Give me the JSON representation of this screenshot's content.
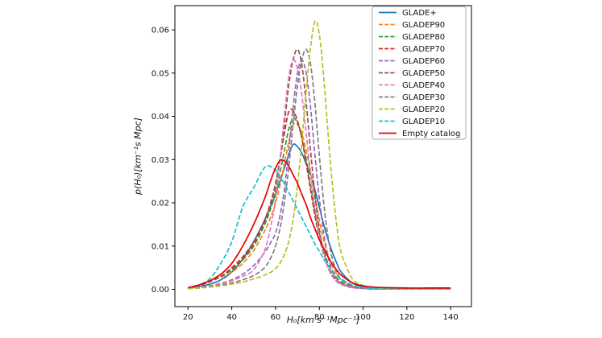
{
  "figure": {
    "background": "#ffffff",
    "text_color": "#111111",
    "spine_color": "#000000",
    "legend_border_color": "#aaaaaa"
  },
  "chart_data": {
    "type": "line",
    "title": "",
    "xlabel": "H₀[km s⁻¹Mpc⁻¹]",
    "ylabel": "p(H₀)[km⁻¹s Mpc]",
    "xlim": [
      14,
      149.5
    ],
    "ylim": [
      -0.004,
      0.0656
    ],
    "grid": false,
    "legend_position": "upper right",
    "xticks": [
      20,
      40,
      60,
      80,
      100,
      120,
      140
    ],
    "xtick_labels": [
      "20",
      "40",
      "60",
      "80",
      "100",
      "120",
      "140"
    ],
    "yticks": [
      0.0,
      0.01,
      0.02,
      0.03,
      0.04,
      0.05,
      0.06
    ],
    "ytick_labels": [
      "0.00",
      "0.01",
      "0.02",
      "0.03",
      "0.04",
      "0.05",
      "0.06"
    ],
    "x": [
      20,
      25,
      30,
      35,
      40,
      45,
      50,
      55,
      58,
      60,
      62,
      64,
      66,
      68,
      70,
      72,
      74,
      76,
      78,
      80,
      82,
      84,
      86,
      88,
      90,
      95,
      100,
      105,
      110,
      120,
      130,
      140
    ],
    "series": [
      {
        "name": "GLADE+",
        "color": "#1f77b4",
        "style": "solid",
        "values": [
          0.0003,
          0.0006,
          0.0012,
          0.0022,
          0.004,
          0.007,
          0.011,
          0.016,
          0.0195,
          0.022,
          0.025,
          0.028,
          0.031,
          0.0335,
          0.033,
          0.0315,
          0.029,
          0.0265,
          0.023,
          0.019,
          0.015,
          0.0115,
          0.0085,
          0.006,
          0.004,
          0.0015,
          0.0006,
          0.0003,
          0.0002,
          0.0001,
          0.0001,
          0.0001
        ]
      },
      {
        "name": "GLADEP90",
        "color": "#ff7f0e",
        "style": "dashed",
        "values": [
          0.0003,
          0.0008,
          0.0018,
          0.0028,
          0.004,
          0.006,
          0.009,
          0.0135,
          0.017,
          0.02,
          0.024,
          0.029,
          0.034,
          0.038,
          0.0382,
          0.036,
          0.032,
          0.027,
          0.0215,
          0.016,
          0.0115,
          0.008,
          0.0053,
          0.0035,
          0.0022,
          0.0008,
          0.0003,
          0.0002,
          0.0001,
          0.0001,
          0.0001,
          0.0001
        ]
      },
      {
        "name": "GLADEP80",
        "color": "#2ca02c",
        "style": "dashed",
        "values": [
          0.0003,
          0.0008,
          0.0018,
          0.003,
          0.0045,
          0.0068,
          0.01,
          0.015,
          0.019,
          0.0225,
          0.027,
          0.032,
          0.037,
          0.0395,
          0.0385,
          0.035,
          0.03,
          0.024,
          0.018,
          0.013,
          0.009,
          0.006,
          0.004,
          0.0026,
          0.0017,
          0.0006,
          0.0003,
          0.0002,
          0.0001,
          0.0001,
          0.0001,
          0.0001
        ]
      },
      {
        "name": "GLADEP70",
        "color": "#d62728",
        "style": "dashed",
        "values": [
          0.0003,
          0.0008,
          0.0018,
          0.003,
          0.005,
          0.0075,
          0.011,
          0.016,
          0.0205,
          0.0245,
          0.03,
          0.036,
          0.041,
          0.0413,
          0.039,
          0.035,
          0.029,
          0.023,
          0.017,
          0.012,
          0.008,
          0.0052,
          0.0033,
          0.0021,
          0.0013,
          0.0005,
          0.0002,
          0.0001,
          0.0001,
          0.0001,
          0.0001,
          0.0001
        ]
      },
      {
        "name": "GLADEP60",
        "color": "#9467bd",
        "style": "dashed",
        "values": [
          0.0002,
          0.0004,
          0.0008,
          0.0014,
          0.0022,
          0.0035,
          0.0055,
          0.0085,
          0.011,
          0.013,
          0.017,
          0.023,
          0.032,
          0.042,
          0.05,
          0.053,
          0.05,
          0.042,
          0.031,
          0.021,
          0.013,
          0.0075,
          0.0042,
          0.0024,
          0.0014,
          0.0005,
          0.0002,
          0.0001,
          0.0001,
          0.0001,
          0.0001,
          0.0001
        ]
      },
      {
        "name": "GLADEP50",
        "color": "#8c564b",
        "style": "dashed",
        "values": [
          0.0003,
          0.0008,
          0.0018,
          0.003,
          0.0048,
          0.007,
          0.0105,
          0.0155,
          0.02,
          0.024,
          0.03,
          0.038,
          0.047,
          0.053,
          0.0555,
          0.052,
          0.043,
          0.032,
          0.022,
          0.014,
          0.0085,
          0.005,
          0.003,
          0.0018,
          0.0011,
          0.0004,
          0.0002,
          0.0001,
          0.0001,
          0.0001,
          0.0001,
          0.0001
        ]
      },
      {
        "name": "GLADEP40",
        "color": "#e377c2",
        "style": "dashed",
        "values": [
          0.0002,
          0.0004,
          0.0008,
          0.0013,
          0.002,
          0.003,
          0.0045,
          0.009,
          0.015,
          0.021,
          0.03,
          0.04,
          0.049,
          0.053,
          0.051,
          0.045,
          0.036,
          0.027,
          0.019,
          0.0125,
          0.008,
          0.005,
          0.003,
          0.0019,
          0.0012,
          0.0004,
          0.0002,
          0.0001,
          0.0001,
          0.0001,
          0.0001,
          0.0001
        ]
      },
      {
        "name": "GLADEP30",
        "color": "#7f7f7f",
        "style": "dashed",
        "values": [
          0.0002,
          0.0003,
          0.0006,
          0.001,
          0.0015,
          0.0022,
          0.0032,
          0.005,
          0.0075,
          0.01,
          0.014,
          0.02,
          0.028,
          0.038,
          0.047,
          0.053,
          0.0555,
          0.052,
          0.043,
          0.031,
          0.02,
          0.012,
          0.007,
          0.004,
          0.0023,
          0.0007,
          0.0003,
          0.0001,
          0.0001,
          0.0001,
          0.0001,
          0.0001
        ]
      },
      {
        "name": "GLADEP20",
        "color": "#bcbd22",
        "style": "dashed",
        "values": [
          0.0002,
          0.0003,
          0.0005,
          0.0008,
          0.0012,
          0.0017,
          0.0024,
          0.0033,
          0.004,
          0.0048,
          0.006,
          0.008,
          0.011,
          0.016,
          0.024,
          0.034,
          0.046,
          0.056,
          0.062,
          0.059,
          0.049,
          0.036,
          0.024,
          0.0145,
          0.0085,
          0.0025,
          0.0009,
          0.0004,
          0.0002,
          0.0001,
          0.0001,
          0.0001
        ]
      },
      {
        "name": "GLADEP10",
        "color": "#17becf",
        "style": "dashed",
        "values": [
          0.0004,
          0.001,
          0.0025,
          0.006,
          0.011,
          0.019,
          0.0235,
          0.0282,
          0.0283,
          0.0275,
          0.026,
          0.0245,
          0.0225,
          0.0205,
          0.0185,
          0.0165,
          0.0145,
          0.0125,
          0.0105,
          0.0088,
          0.007,
          0.0055,
          0.0042,
          0.0032,
          0.0024,
          0.001,
          0.0004,
          0.0002,
          0.0001,
          0.0001,
          0.0001,
          0.0001
        ]
      },
      {
        "name": "Empty catalog",
        "color": "#e60000",
        "style": "solid",
        "values": [
          0.0004,
          0.001,
          0.002,
          0.0035,
          0.006,
          0.01,
          0.015,
          0.021,
          0.0255,
          0.028,
          0.0298,
          0.0297,
          0.0285,
          0.0265,
          0.0245,
          0.022,
          0.0195,
          0.0165,
          0.014,
          0.0115,
          0.0095,
          0.0075,
          0.0058,
          0.0044,
          0.0033,
          0.0015,
          0.0008,
          0.0005,
          0.0004,
          0.0003,
          0.0003,
          0.0003
        ]
      }
    ],
    "legend_labels": [
      "GLADE+",
      "GLADEP90",
      "GLADEP80",
      "GLADEP70",
      "GLADEP60",
      "GLADEP50",
      "GLADEP40",
      "GLADEP30",
      "GLADEP20",
      "GLADEP10",
      "Empty catalog"
    ]
  }
}
